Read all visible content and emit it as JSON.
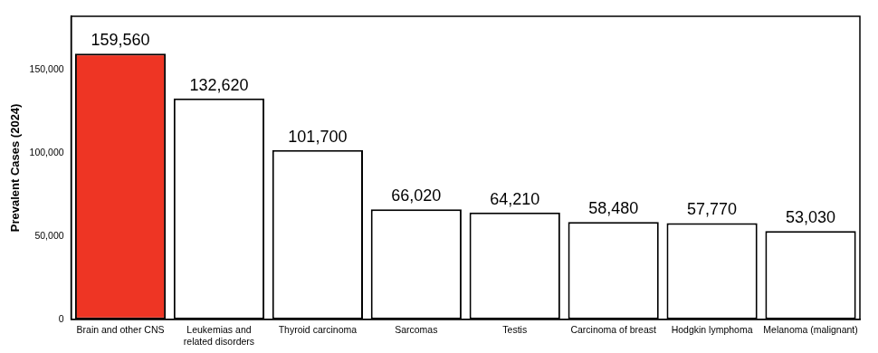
{
  "chart_data": {
    "type": "bar",
    "y_label": "Prevalent Cases (2024)",
    "categories": [
      "Brain and other CNS",
      "Leukemias and\nrelated disorders",
      "Thyroid carcinoma",
      "Sarcomas",
      "Testis",
      "Carcinoma of breast",
      "Hodgkin lymphoma",
      "Melanoma (malignant)"
    ],
    "values": [
      159560,
      132620,
      101700,
      66020,
      64210,
      58480,
      57770,
      53030
    ],
    "value_labels": [
      "159,560",
      "132,620",
      "101,700",
      "66,020",
      "64,210",
      "58,480",
      "57,770",
      "53,030"
    ],
    "colors": [
      "#ee3524",
      "#ffffff",
      "#ffffff",
      "#ffffff",
      "#ffffff",
      "#ffffff",
      "#ffffff",
      "#ffffff"
    ],
    "ylim": [
      0,
      182000
    ],
    "yticks": [
      0,
      {
        "value": 50000,
        "label": "50,000"
      },
      {
        "value": 100000,
        "label": "100,000"
      },
      {
        "value": 150000,
        "label": "150,000"
      }
    ],
    "grid": false,
    "data_labels": true
  }
}
